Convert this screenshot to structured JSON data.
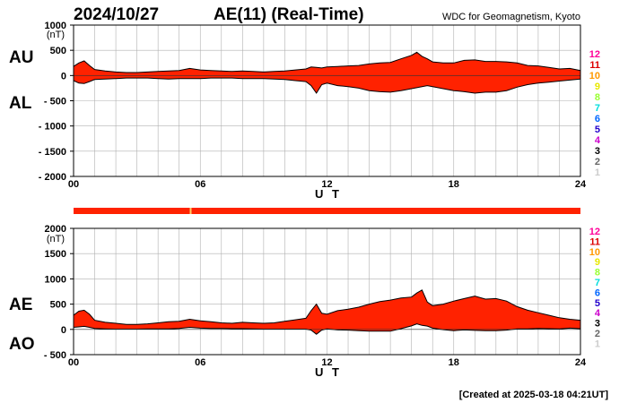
{
  "header": {
    "date": "2024/10/27",
    "title": "AE(11) (Real-Time)",
    "source": "WDC for Geomagnetism, Kyoto"
  },
  "footer": {
    "created": "[Created at 2025-03-18 04:21UT]"
  },
  "status_bar": {
    "color": "#ff2200",
    "marker_hour": 5.5,
    "marker_color": "#ffcc66"
  },
  "colors": {
    "fill": "#ff2200",
    "line": "#000000",
    "grid": "#b0b0b0"
  },
  "levels": [
    {
      "label": "12",
      "color": "#ff0099"
    },
    {
      "label": "11",
      "color": "#dd0000"
    },
    {
      "label": "10",
      "color": "#ff9900"
    },
    {
      "label": "9",
      "color": "#e8e800"
    },
    {
      "label": "8",
      "color": "#99ff33"
    },
    {
      "label": "7",
      "color": "#00dddd"
    },
    {
      "label": "6",
      "color": "#0066ff"
    },
    {
      "label": "5",
      "color": "#2200cc"
    },
    {
      "label": "4",
      "color": "#cc00cc"
    },
    {
      "label": "3",
      "color": "#000000"
    },
    {
      "label": "2",
      "color": "#666666"
    },
    {
      "label": "1",
      "color": "#cccccc"
    }
  ],
  "chart_data": [
    {
      "type": "area",
      "panel": "AU/AL",
      "labels": {
        "upper": "AU",
        "lower": "AL"
      },
      "unit": "(nT)",
      "xlabel": "U T",
      "xlim": [
        0,
        24
      ],
      "ylim": [
        -2000,
        1000
      ],
      "xticks": [
        0,
        6,
        12,
        18,
        24
      ],
      "xtick_labels": [
        "00",
        "06",
        "12",
        "18",
        "24"
      ],
      "yticks": [
        1000,
        500,
        0,
        -500,
        -1000,
        -1500,
        -2000
      ],
      "ytick_labels": [
        "1000",
        "500",
        "0",
        "- 500",
        "- 1000",
        "- 1500",
        "- 2000"
      ],
      "grid": true,
      "x": [
        0,
        0.25,
        0.5,
        0.75,
        1,
        1.5,
        2,
        2.5,
        3,
        3.5,
        4,
        4.5,
        5,
        5.5,
        6,
        6.5,
        7,
        7.5,
        8,
        8.5,
        9,
        9.5,
        10,
        10.5,
        11,
        11.25,
        11.5,
        11.75,
        12,
        12.5,
        13,
        13.5,
        14,
        14.5,
        15,
        15.5,
        16,
        16.25,
        16.5,
        16.75,
        17,
        17.5,
        18,
        18.5,
        19,
        19.5,
        20,
        20.5,
        21,
        21.5,
        22,
        22.5,
        23,
        23.5,
        24
      ],
      "series": [
        {
          "name": "AU",
          "values": [
            180,
            250,
            290,
            200,
            120,
            90,
            70,
            60,
            60,
            70,
            80,
            90,
            100,
            140,
            110,
            100,
            90,
            80,
            90,
            80,
            70,
            80,
            90,
            110,
            130,
            170,
            160,
            150,
            170,
            180,
            190,
            200,
            230,
            250,
            260,
            330,
            400,
            460,
            380,
            330,
            270,
            250,
            250,
            300,
            310,
            280,
            280,
            270,
            250,
            200,
            190,
            160,
            130,
            140,
            100
          ]
        },
        {
          "name": "AL",
          "values": [
            -100,
            -150,
            -160,
            -120,
            -80,
            -70,
            -60,
            -50,
            -50,
            -50,
            -60,
            -70,
            -60,
            -60,
            -60,
            -50,
            -50,
            -50,
            -60,
            -60,
            -60,
            -70,
            -80,
            -100,
            -120,
            -200,
            -350,
            -180,
            -150,
            -200,
            -220,
            -250,
            -300,
            -320,
            -330,
            -300,
            -260,
            -240,
            -220,
            -200,
            -220,
            -260,
            -300,
            -320,
            -350,
            -330,
            -330,
            -300,
            -230,
            -180,
            -150,
            -130,
            -110,
            -90,
            -70
          ]
        }
      ]
    },
    {
      "type": "area",
      "panel": "AE/AO",
      "labels": {
        "upper": "AE",
        "lower": "AO"
      },
      "unit": "(nT)",
      "xlabel": "U T",
      "xlim": [
        0,
        24
      ],
      "ylim": [
        -500,
        2000
      ],
      "xticks": [
        0,
        6,
        12,
        18,
        24
      ],
      "xtick_labels": [
        "00",
        "06",
        "12",
        "18",
        "24"
      ],
      "yticks": [
        2000,
        1500,
        1000,
        500,
        0,
        -500
      ],
      "ytick_labels": [
        "2000",
        "1500",
        "1000",
        "500",
        "0",
        "- 500"
      ],
      "grid": true,
      "x": [
        0,
        0.25,
        0.5,
        0.75,
        1,
        1.5,
        2,
        2.5,
        3,
        3.5,
        4,
        4.5,
        5,
        5.5,
        6,
        6.5,
        7,
        7.5,
        8,
        8.5,
        9,
        9.5,
        10,
        10.5,
        11,
        11.25,
        11.5,
        11.75,
        12,
        12.5,
        13,
        13.5,
        14,
        14.5,
        15,
        15.5,
        16,
        16.25,
        16.5,
        16.75,
        17,
        17.5,
        18,
        18.5,
        19,
        19.5,
        20,
        20.5,
        21,
        21.5,
        22,
        22.5,
        23,
        23.5,
        24
      ],
      "series": [
        {
          "name": "AE",
          "values": [
            280,
            360,
            380,
            300,
            180,
            140,
            120,
            100,
            100,
            110,
            130,
            150,
            160,
            200,
            170,
            150,
            130,
            120,
            140,
            130,
            120,
            130,
            160,
            190,
            220,
            370,
            500,
            320,
            300,
            370,
            400,
            440,
            500,
            550,
            580,
            620,
            640,
            720,
            780,
            540,
            470,
            500,
            560,
            610,
            660,
            600,
            610,
            560,
            450,
            380,
            330,
            280,
            230,
            200,
            180
          ]
        },
        {
          "name": "AO",
          "values": [
            40,
            50,
            60,
            40,
            20,
            10,
            5,
            5,
            5,
            10,
            10,
            10,
            20,
            40,
            25,
            20,
            20,
            15,
            15,
            10,
            5,
            5,
            5,
            5,
            5,
            -15,
            -95,
            -15,
            10,
            -10,
            -15,
            -25,
            -35,
            -35,
            -35,
            15,
            70,
            110,
            80,
            65,
            25,
            -5,
            -25,
            -10,
            -20,
            -25,
            -25,
            -15,
            10,
            10,
            20,
            15,
            10,
            25,
            15
          ]
        }
      ]
    }
  ]
}
